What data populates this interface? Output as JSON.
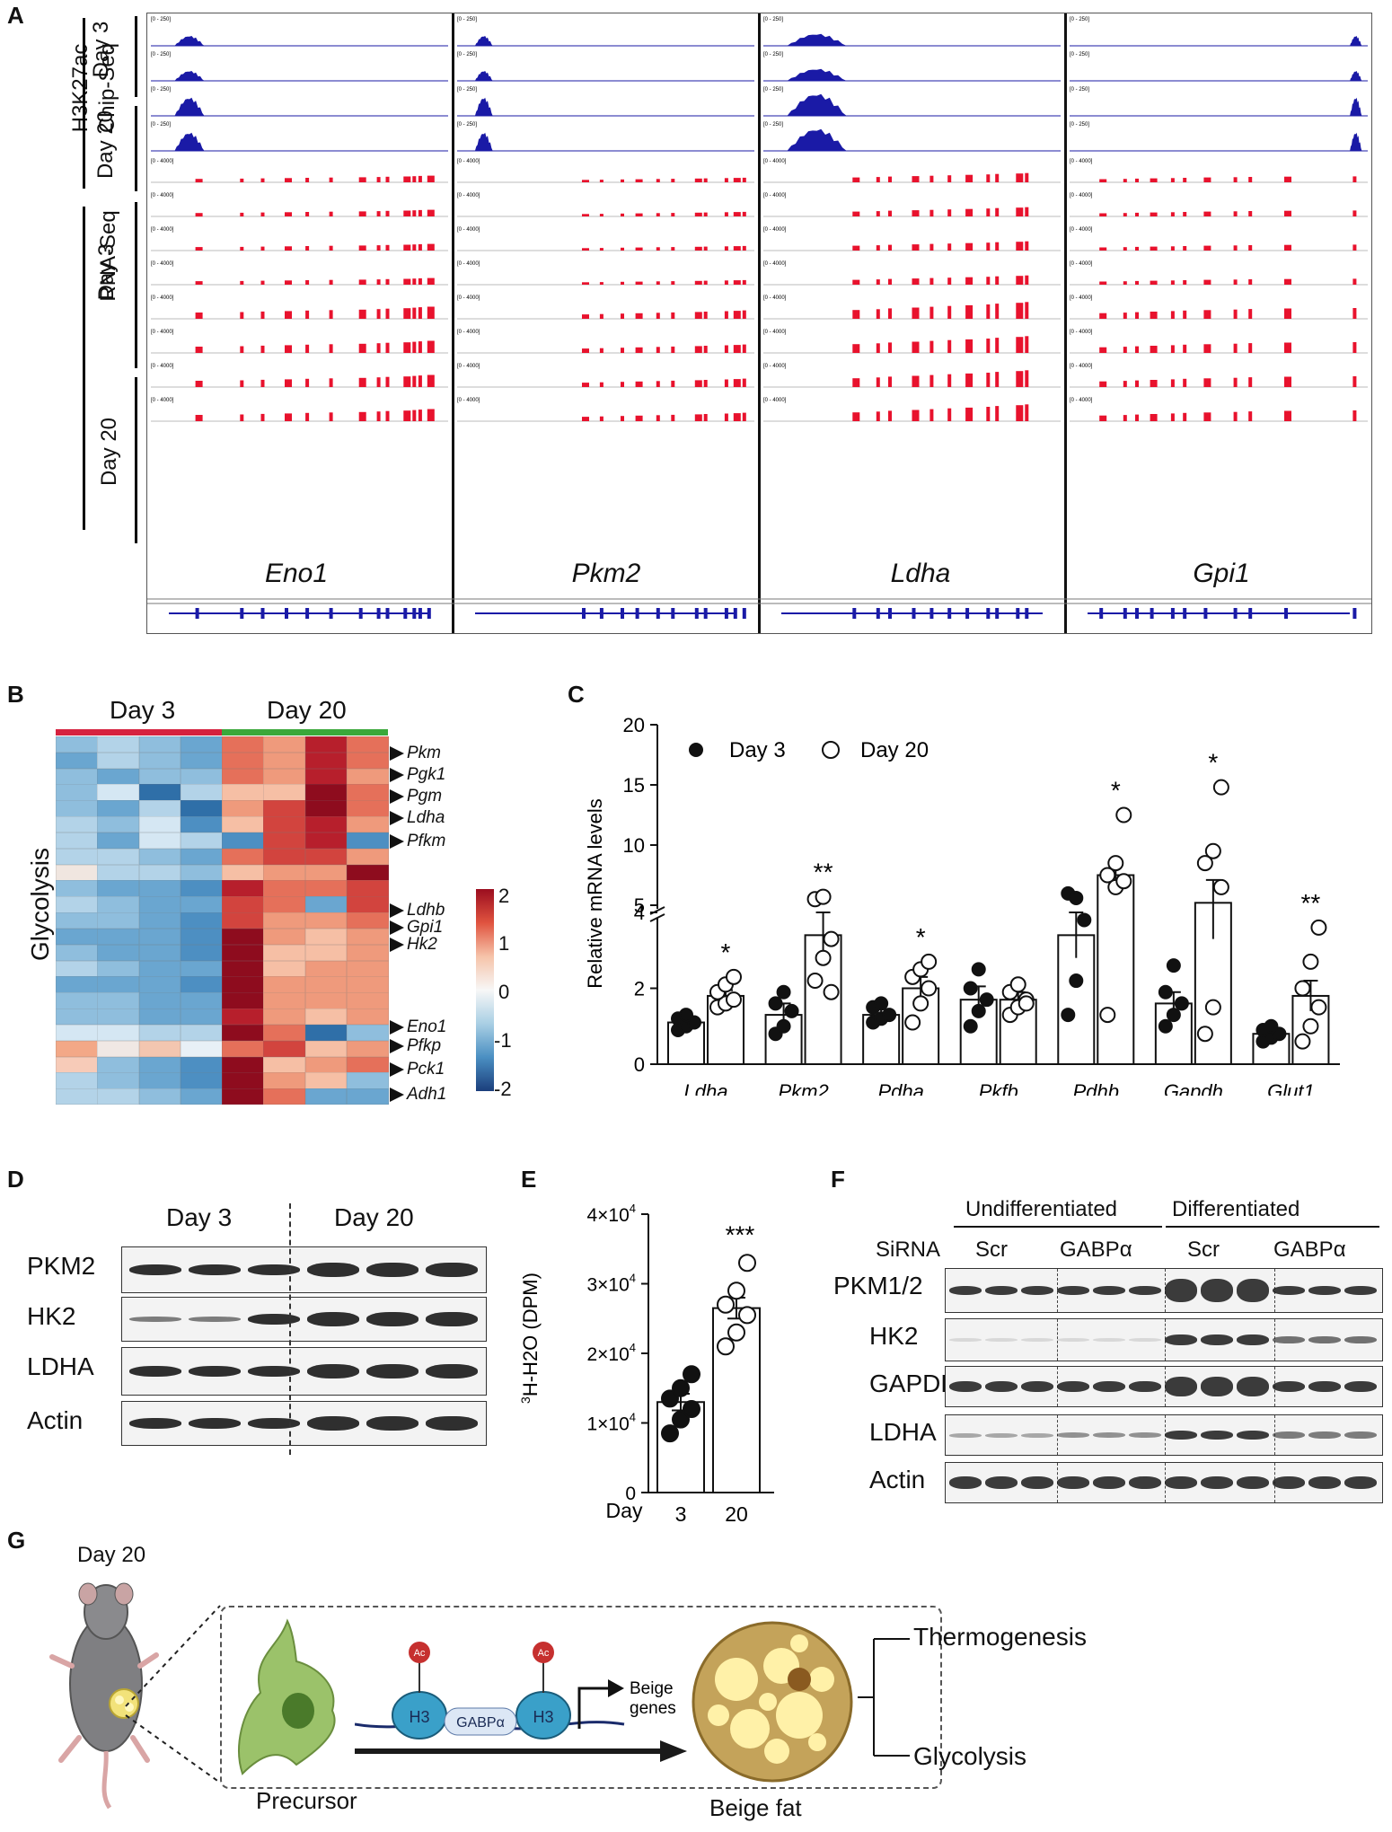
{
  "panelA": {
    "label": "A",
    "chip_label_1": "H3K27ac",
    "chip_label_2": "Chip-Seq",
    "rna_label": "RNA-Seq",
    "day3": "Day 3",
    "day20": "Day 20",
    "scale_chip": "[0 - 250]",
    "scale_rna": "[0 - 4000]",
    "genes": [
      "Eno1",
      "Pkm2",
      "Ldha",
      "Gpi1"
    ],
    "chip_color": "#1a1aa6",
    "rna_color": "#e8122d"
  },
  "panelB": {
    "label": "B",
    "day3": "Day 3",
    "day20": "Day 20",
    "ylabel": "Glycolysis",
    "genes": [
      "Pkm",
      "Pgk1",
      "Pgm",
      "Ldha",
      "Pfkm",
      "Ldhb",
      "Gpi1",
      "Hk2",
      "Eno1",
      "Pfkp",
      "Pck1",
      "Adh1"
    ],
    "legend_ticks": [
      "2",
      "1",
      "0",
      "-1",
      "-2"
    ],
    "day3_bar_color": "#d6223f",
    "day20_bar_color": "#3aa83a"
  },
  "panelD": {
    "label": "D",
    "day3": "Day 3",
    "day20": "Day 20",
    "rows": [
      "PKM2",
      "HK2",
      "LDHA",
      "Actin"
    ]
  },
  "panelF": {
    "label": "F",
    "undiff": "Undifferentiated",
    "diff": "Differentiated",
    "sirna": "SiRNA",
    "scr": "Scr",
    "gabp": "GABPα",
    "rows": [
      "PKM1/2",
      "HK2",
      "GAPDH",
      "LDHA",
      "Actin"
    ]
  },
  "panelG": {
    "label": "G",
    "day20": "Day 20",
    "precursor": "Precursor",
    "beige_fat": "Beige fat",
    "thermogenesis": "Thermogenesis",
    "glycolysis": "Glycolysis",
    "ac": "Ac",
    "h3": "H3",
    "gabp": "GABPα",
    "beige_genes_1": "Beige",
    "beige_genes_2": "genes"
  },
  "chart_data": [
    {
      "panel": "C",
      "type": "bar",
      "ylabel": "Relative mRNA levels",
      "legend": [
        "Day 3",
        "Day 20"
      ],
      "categories": [
        "Ldha",
        "Pkm2",
        "Pdha",
        "Pkfb",
        "Pdhb",
        "Gapdh",
        "Glut1"
      ],
      "yticks_lower": [
        "0",
        "2",
        "4"
      ],
      "yticks_upper": [
        "5",
        "10",
        "15",
        "20"
      ],
      "y_break": [
        4.5,
        5
      ],
      "series": [
        {
          "name": "Day 3",
          "values": [
            1.1,
            1.3,
            1.3,
            1.7,
            3.4,
            1.6,
            0.8
          ],
          "sem": [
            0.1,
            0.3,
            0.15,
            0.35,
            0.6,
            0.3,
            0.1
          ]
        },
        {
          "name": "Day 20",
          "values": [
            1.8,
            3.4,
            2.0,
            1.7,
            7.5,
            5.2,
            1.8
          ],
          "sem": [
            0.15,
            0.6,
            0.3,
            0.2,
            0.8,
            1.9,
            0.4
          ]
        }
      ],
      "points_day3": [
        [
          0.9,
          1.0,
          1.1,
          1.2,
          1.3
        ],
        [
          0.8,
          1.0,
          1.4,
          1.6,
          1.9
        ],
        [
          1.1,
          1.2,
          1.3,
          1.5,
          1.6
        ],
        [
          1.0,
          1.4,
          1.7,
          2.0,
          2.5
        ],
        [
          1.3,
          2.2,
          3.8,
          4.5,
          5.6
        ],
        [
          1.0,
          1.3,
          1.6,
          1.9,
          2.6
        ],
        [
          0.6,
          0.7,
          0.8,
          0.9,
          1.0
        ]
      ],
      "points_day20": [
        [
          1.5,
          1.6,
          1.7,
          1.9,
          2.1,
          2.3
        ],
        [
          2.2,
          2.8,
          3.3,
          5.5,
          5.7,
          1.9
        ],
        [
          1.1,
          1.6,
          2.0,
          2.3,
          2.5,
          2.7
        ],
        [
          1.3,
          1.5,
          1.7,
          1.9,
          2.1,
          1.6
        ],
        [
          1.3,
          6.5,
          7.0,
          7.5,
          8.5,
          12.5
        ],
        [
          0.8,
          1.5,
          6.5,
          8.5,
          9.5,
          14.8
        ],
        [
          0.6,
          1.0,
          1.5,
          2.0,
          2.7,
          3.6
        ]
      ],
      "significance": [
        "*",
        "**",
        "*",
        "",
        "*",
        "*",
        "**"
      ]
    },
    {
      "panel": "E",
      "type": "bar",
      "ylabel": "3H-H2O (DPM)",
      "xprefix": "Day",
      "categories": [
        "3",
        "20"
      ],
      "values": [
        13000,
        26500
      ],
      "sem": [
        1200,
        1500
      ],
      "points": [
        [
          8500,
          10500,
          12000,
          13500,
          15000,
          17000
        ],
        [
          21000,
          23000,
          25500,
          27000,
          29000,
          33000
        ]
      ],
      "yticks": [
        "0",
        "1×10",
        "2×10",
        "3×10",
        "4×10"
      ],
      "tick_exponent": "4",
      "ylim": [
        0,
        40000
      ],
      "significance": "***"
    }
  ]
}
